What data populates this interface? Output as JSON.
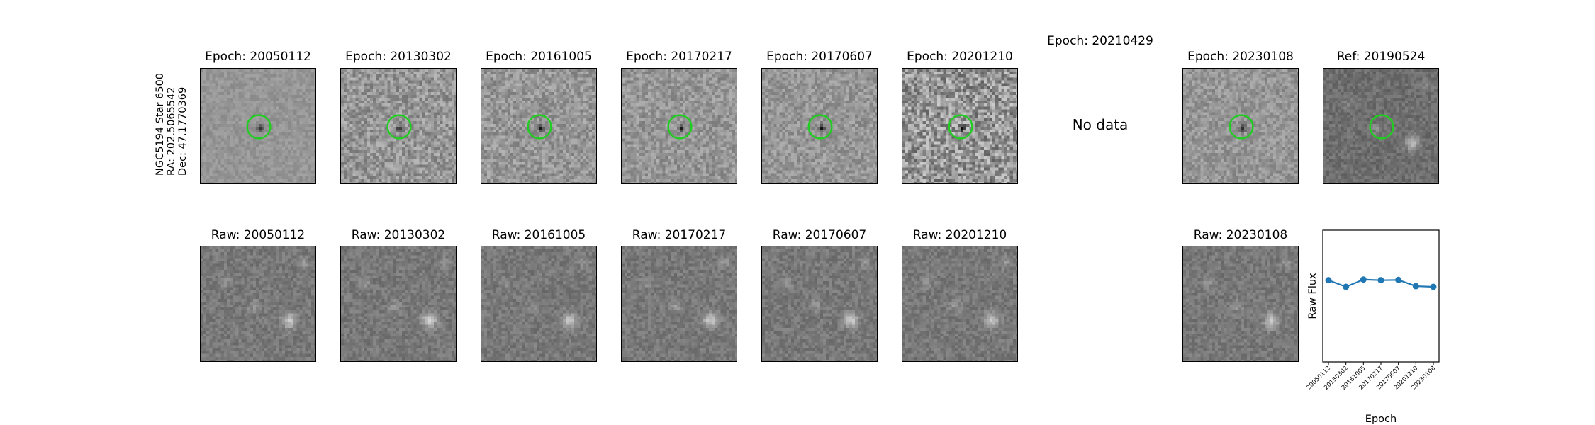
{
  "star_label": {
    "line1": "NGC5194 Star 6500",
    "line2": "RA: 202.5065542",
    "line3": "Dec: 47.1770369"
  },
  "diff_panels": [
    {
      "title": "Epoch: 20050112",
      "has_data": true
    },
    {
      "title": "Epoch: 20130302",
      "has_data": true
    },
    {
      "title": "Epoch: 20161005",
      "has_data": true
    },
    {
      "title": "Epoch: 20170217",
      "has_data": true
    },
    {
      "title": "Epoch: 20170607",
      "has_data": true
    },
    {
      "title": "Epoch: 20201210",
      "has_data": true
    },
    {
      "title": "Epoch: 20210429",
      "has_data": false,
      "message": "No data"
    },
    {
      "title": "Epoch: 20230108",
      "has_data": true
    }
  ],
  "ref_panel": {
    "title": "Ref: 20190524"
  },
  "raw_panels": [
    {
      "title": "Raw: 20050112"
    },
    {
      "title": "Raw: 20130302"
    },
    {
      "title": "Raw: 20161005"
    },
    {
      "title": "Raw: 20170217"
    },
    {
      "title": "Raw: 20170607"
    },
    {
      "title": "Raw: 20201210"
    },
    {
      "title": "Raw: 20230108"
    }
  ],
  "colors": {
    "circle": "#22cc22",
    "line": "#1f77b4"
  },
  "chart_data": {
    "type": "line",
    "xlabel": "Epoch",
    "ylabel": "Raw Flux",
    "categories": [
      "20050112",
      "20130302",
      "20161005",
      "20170217",
      "20170607",
      "20201210",
      "20230108"
    ],
    "series": [
      {
        "values": [
          0.62,
          0.57,
          0.625,
          0.62,
          0.622,
          0.575,
          0.57
        ]
      }
    ],
    "ylim": [
      0,
      1
    ],
    "grid": false
  }
}
